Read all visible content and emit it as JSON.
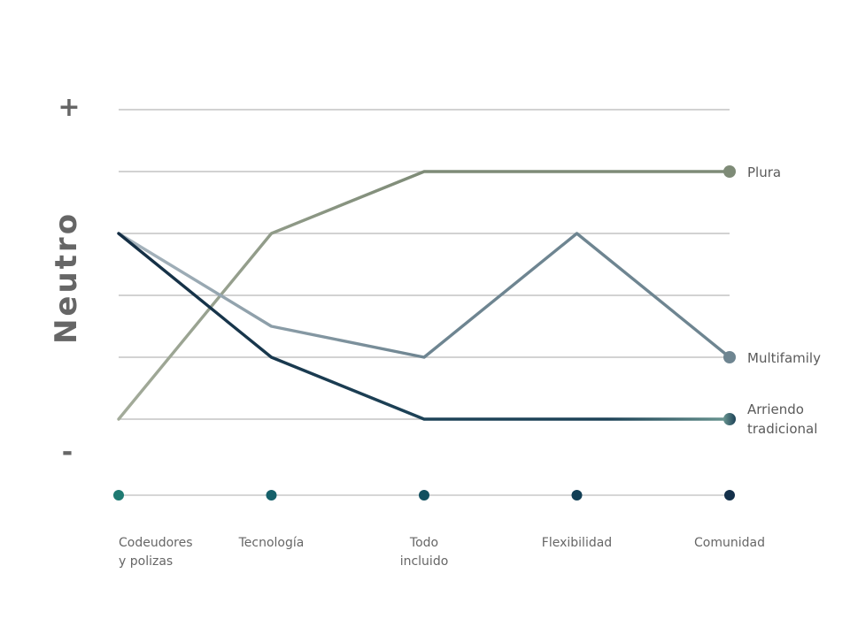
{
  "chart_data": {
    "type": "line",
    "ylabel": "Neutro",
    "y_top_label": "+",
    "y_bottom_label": "-",
    "ylim": [
      0,
      5
    ],
    "grid": true,
    "legend": "right-end-labels",
    "categories": [
      [
        "Codeudores",
        "y polizas"
      ],
      [
        "Tecnología"
      ],
      [
        "Todo",
        "incluido"
      ],
      [
        "Flexibilidad"
      ],
      [
        "Comunidad"
      ]
    ],
    "category_dot_colors": [
      "#1f7a72",
      "#16606a",
      "#12505f",
      "#123f55",
      "#14304a"
    ],
    "series": [
      {
        "name": "Plura",
        "values": [
          0,
          3,
          4,
          4,
          4
        ],
        "color": "#7e8b77",
        "start_color": "#a3ab9a",
        "label_lines": [
          "Plura"
        ]
      },
      {
        "name": "Multifamily",
        "values": [
          3,
          1.5,
          1,
          3,
          1
        ],
        "color": "#6e8591",
        "start_color": "#a9b6bf",
        "label_lines": [
          "Multifamily"
        ]
      },
      {
        "name": "Arriendo tradicional",
        "values": [
          3,
          1,
          0,
          0,
          0
        ],
        "color": "#1d4257",
        "start_color": "#142e44",
        "end_color": "#6a9691",
        "label_lines": [
          "Arriendo",
          "tradicional"
        ]
      }
    ]
  },
  "colors": {
    "grid": "#c4c4c4",
    "axis": "#c8c8c8",
    "text": "#666666"
  }
}
